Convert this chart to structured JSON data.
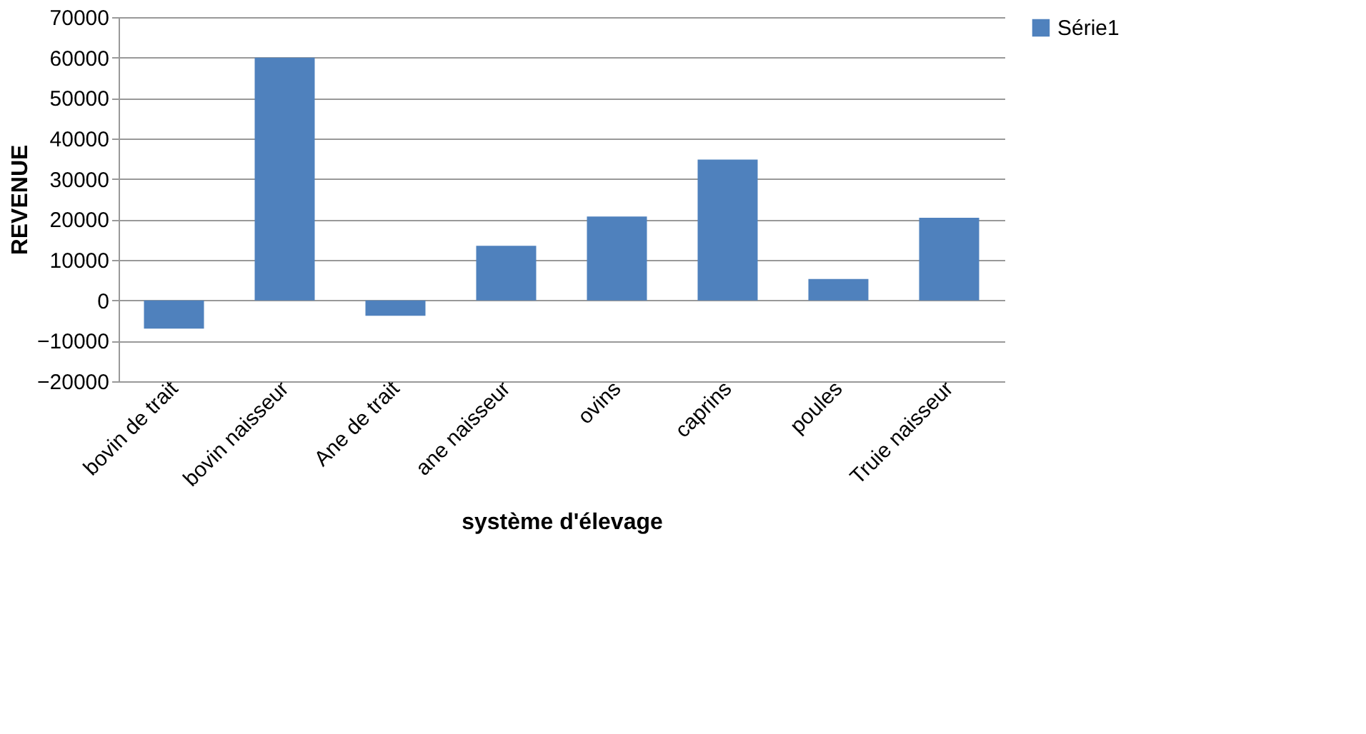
{
  "chart_data": {
    "type": "bar",
    "xlabel": "système d'élevage",
    "ylabel": "REVENUE",
    "categories": [
      "bovin de trait",
      "bovin naisseur",
      "Ane de trait",
      "ane naisseur",
      "ovins",
      "caprins",
      "poules",
      "Truie naisseur"
    ],
    "series": [
      {
        "name": "Série1",
        "color": "#4f81bd",
        "values": [
          -7000,
          60000,
          -3800,
          13500,
          20700,
          34800,
          5300,
          20400
        ]
      }
    ],
    "ylim": [
      -20000,
      70000
    ],
    "yticks": [
      -20000,
      -10000,
      0,
      10000,
      20000,
      30000,
      40000,
      50000,
      60000,
      70000
    ],
    "grid": true,
    "legend": "right"
  }
}
